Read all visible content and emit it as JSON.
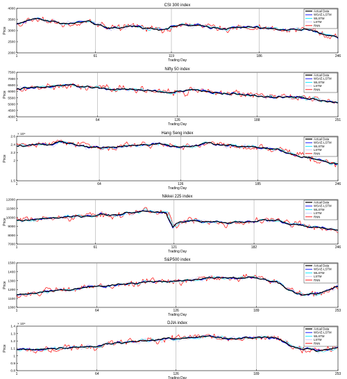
{
  "figure": {
    "colors": {
      "Actual Data": "#000000",
      "WSAE-LSTM": "#0000ff",
      "WLSTM": "#00e5ff",
      "LSTM": "#c8c8ff",
      "RNN": "#ff0000"
    }
  },
  "chart_data": [
    {
      "type": "line",
      "title": "CSI 300 index",
      "xlabel": "Trading Day",
      "ylabel": "Price",
      "xlim": [
        1,
        246
      ],
      "ylim": [
        2000,
        4000
      ],
      "xticks": [
        1,
        61,
        119,
        186,
        246
      ],
      "yticks": [
        2000,
        2500,
        3000,
        3500,
        4000
      ],
      "ytick_labels": [
        "2000",
        "2500",
        "3000",
        "3500",
        "4000"
      ],
      "exponent": "",
      "series_names": [
        "Actual Data",
        "WSAE-LSTM",
        "WLSTM",
        "LSTM",
        "RNN"
      ],
      "actual_knots": [
        [
          1,
          3300
        ],
        [
          15,
          3550
        ],
        [
          25,
          3450
        ],
        [
          40,
          3300
        ],
        [
          55,
          3400
        ],
        [
          70,
          3100
        ],
        [
          90,
          3200
        ],
        [
          110,
          3050
        ],
        [
          125,
          3250
        ],
        [
          140,
          3200
        ],
        [
          160,
          3100
        ],
        [
          180,
          3150
        ],
        [
          200,
          3050
        ],
        [
          220,
          3050
        ],
        [
          235,
          2850
        ],
        [
          246,
          2700
        ]
      ]
    },
    {
      "type": "line",
      "title": "Nifty 50 index",
      "xlabel": "Trading Day",
      "ylabel": "Price",
      "xlim": [
        1,
        251
      ],
      "ylim": [
        4000,
        7500
      ],
      "xticks": [
        1,
        64,
        126,
        188,
        251
      ],
      "yticks": [
        4000,
        4500,
        5000,
        5500,
        6000,
        6500,
        7000,
        7500
      ],
      "ytick_labels": [
        "4000",
        "4500",
        "5000",
        "5500",
        "6000",
        "6500",
        "7000",
        "7500"
      ],
      "exponent": "",
      "series_names": [
        "Actual Data",
        "WSAE-LSTM",
        "WLSTM",
        "LSTM",
        "RNN"
      ],
      "actual_knots": [
        [
          1,
          6200
        ],
        [
          20,
          6300
        ],
        [
          40,
          6500
        ],
        [
          60,
          6300
        ],
        [
          80,
          6150
        ],
        [
          100,
          6100
        ],
        [
          120,
          5900
        ],
        [
          140,
          6100
        ],
        [
          160,
          5850
        ],
        [
          180,
          5750
        ],
        [
          200,
          5500
        ],
        [
          220,
          5600
        ],
        [
          240,
          5300
        ],
        [
          251,
          5100
        ]
      ]
    },
    {
      "type": "line",
      "title": "Hang Seng index",
      "xlabel": "Trading Day",
      "ylabel": "Price",
      "xlim": [
        1,
        246
      ],
      "ylim": [
        15000,
        26000
      ],
      "xticks": [
        1,
        64,
        126,
        185,
        246
      ],
      "yticks": [
        15000,
        20000,
        22000,
        24000,
        26000
      ],
      "ytick_labels": [
        "1.5",
        "2",
        "2.2",
        "2.4",
        "2.6"
      ],
      "exponent": "× 10⁴",
      "series_names": [
        "Actual Data",
        "WSAE-LSTM",
        "WLSTM",
        "LSTM",
        "RNN"
      ],
      "actual_knots": [
        [
          1,
          23500
        ],
        [
          20,
          23800
        ],
        [
          35,
          24800
        ],
        [
          50,
          23600
        ],
        [
          70,
          23200
        ],
        [
          90,
          23800
        ],
        [
          110,
          24100
        ],
        [
          126,
          23200
        ],
        [
          145,
          24200
        ],
        [
          165,
          23700
        ],
        [
          185,
          23400
        ],
        [
          200,
          22800
        ],
        [
          210,
          21500
        ],
        [
          225,
          20600
        ],
        [
          246,
          19100
        ]
      ]
    },
    {
      "type": "line",
      "title": "Nikkei 225 index",
      "xlabel": "Trading Day",
      "ylabel": "Price",
      "xlim": [
        1,
        246
      ],
      "ylim": [
        7000,
        12000
      ],
      "xticks": [
        1,
        61,
        121,
        182,
        246
      ],
      "yticks": [
        7000,
        8000,
        9000,
        10000,
        11000,
        12000
      ],
      "ytick_labels": [
        "7000",
        "8000",
        "9000",
        "10000",
        "11000",
        "12000"
      ],
      "exponent": "",
      "series_names": [
        "Actual Data",
        "WSAE-LSTM",
        "WLSTM",
        "LSTM",
        "RNN"
      ],
      "actual_knots": [
        [
          1,
          9600
        ],
        [
          30,
          9900
        ],
        [
          61,
          10200
        ],
        [
          80,
          10400
        ],
        [
          100,
          10700
        ],
        [
          115,
          10500
        ],
        [
          120,
          8900
        ],
        [
          125,
          9500
        ],
        [
          140,
          9600
        ],
        [
          160,
          9400
        ],
        [
          182,
          9600
        ],
        [
          200,
          9700
        ],
        [
          210,
          9200
        ],
        [
          230,
          8800
        ],
        [
          246,
          8600
        ]
      ]
    },
    {
      "type": "line",
      "title": "S&P500 index",
      "xlabel": "Trading Day",
      "ylabel": "Price",
      "xlim": [
        1,
        253
      ],
      "ylim": [
        1000,
        1500
      ],
      "xticks": [
        1,
        64,
        126,
        189,
        253
      ],
      "yticks": [
        1000,
        1100,
        1200,
        1300,
        1400,
        1500
      ],
      "ytick_labels": [
        "1000",
        "1100",
        "1200",
        "1300",
        "1400",
        "1500"
      ],
      "exponent": "",
      "series_names": [
        "Actual Data",
        "WSAE-LSTM",
        "WLSTM",
        "LSTM",
        "RNN"
      ],
      "actual_knots": [
        [
          1,
          1140
        ],
        [
          30,
          1180
        ],
        [
          64,
          1240
        ],
        [
          90,
          1270
        ],
        [
          110,
          1290
        ],
        [
          126,
          1300
        ],
        [
          150,
          1330
        ],
        [
          170,
          1340
        ],
        [
          189,
          1330
        ],
        [
          205,
          1290
        ],
        [
          215,
          1200
        ],
        [
          225,
          1140
        ],
        [
          240,
          1170
        ],
        [
          253,
          1230
        ]
      ]
    },
    {
      "type": "line",
      "title": "DJIA index",
      "xlabel": "Trading Day",
      "ylabel": "Price",
      "xlim": [
        1,
        253
      ],
      "ylim": [
        8000,
        14000
      ],
      "xticks": [
        1,
        64,
        126,
        189,
        253
      ],
      "yticks": [
        8000,
        9000,
        10000,
        11000,
        12000,
        13000,
        14000
      ],
      "ytick_labels": [
        "0.8",
        "0.9",
        "1",
        "1.1",
        "1.2",
        "1.3",
        "1.4"
      ],
      "exponent": "× 10⁴",
      "series_names": [
        "Actual Data",
        "WSAE-LSTM",
        "WLSTM",
        "LSTM",
        "RNN"
      ],
      "actual_knots": [
        [
          1,
          10800
        ],
        [
          30,
          11000
        ],
        [
          64,
          11400
        ],
        [
          90,
          11900
        ],
        [
          110,
          12200
        ],
        [
          126,
          12400
        ],
        [
          150,
          12600
        ],
        [
          170,
          12300
        ],
        [
          189,
          12500
        ],
        [
          205,
          12400
        ],
        [
          215,
          11500
        ],
        [
          225,
          10900
        ],
        [
          240,
          10700
        ],
        [
          253,
          11100
        ]
      ]
    }
  ]
}
